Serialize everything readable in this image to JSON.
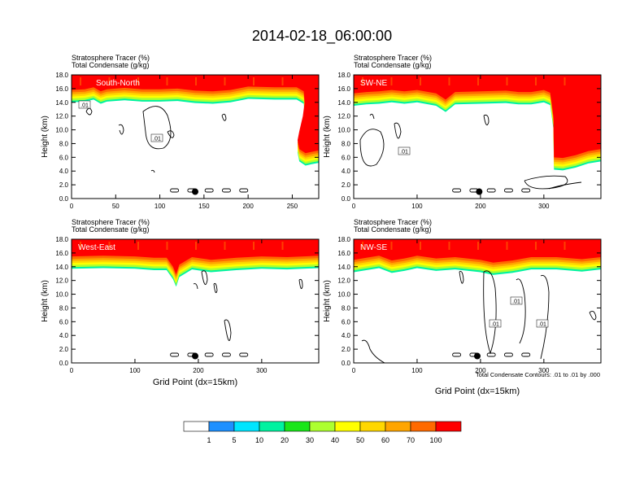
{
  "title": "2014-02-18_06:00:00",
  "colors": {
    "levels": [
      "#ffffff",
      "#1e90ff",
      "#00e5ff",
      "#00f2a0",
      "#19e619",
      "#adff2f",
      "#ffff00",
      "#ffd700",
      "#ffa500",
      "#ff6a00",
      "#ff0000"
    ],
    "contour": "#000000",
    "frame": "#000000"
  },
  "colorbar": {
    "labels": [
      "1",
      "5",
      "10",
      "20",
      "30",
      "40",
      "50",
      "60",
      "70",
      "100"
    ]
  },
  "contour_note": "Total Condensate Contours: .01 to .01 by .000",
  "chart_data": [
    {
      "type": "heatmap",
      "panel": "South-North",
      "header": [
        "Stratosphere Tracer   (%)",
        "Total Condensate   (g/kg)"
      ],
      "ylabel": "Height (km)",
      "xlabel": "",
      "xlim": [
        0,
        280
      ],
      "ylim": [
        0,
        18
      ],
      "xticks": [
        "0",
        "50",
        "100",
        "150",
        "200",
        "250"
      ],
      "yticks": [
        "0.0",
        "2.0",
        "4.0",
        "6.0",
        "8.0",
        "10.0",
        "12.0",
        "14.0",
        "16.0",
        "18.0"
      ],
      "contour_labels": [
        ".01",
        ".01"
      ],
      "marker_x": 140,
      "tropopause": [
        [
          0,
          15.8
        ],
        [
          15,
          15.9
        ],
        [
          25,
          16.2
        ],
        [
          33,
          15.6
        ],
        [
          40,
          15.9
        ],
        [
          60,
          16.1
        ],
        [
          80,
          15.9
        ],
        [
          100,
          15.9
        ],
        [
          120,
          16.0
        ],
        [
          140,
          15.7
        ],
        [
          160,
          15.6
        ],
        [
          180,
          15.8
        ],
        [
          200,
          16.3
        ],
        [
          230,
          16.2
        ],
        [
          255,
          16.2
        ],
        [
          263,
          15.6
        ],
        [
          264,
          14.0
        ],
        [
          262,
          12.0
        ],
        [
          258,
          9.8
        ],
        [
          256,
          8.5
        ],
        [
          258,
          7.2
        ],
        [
          265,
          6.6
        ],
        [
          272,
          6.8
        ],
        [
          280,
          7.0
        ]
      ]
    },
    {
      "type": "heatmap",
      "panel": "SW-NE",
      "header": [
        "Stratosphere Tracer   (%)",
        "Total Condensate   (g/kg)"
      ],
      "ylabel": "Height (km)",
      "xlabel": "",
      "xlim": [
        0,
        390
      ],
      "ylim": [
        0,
        18
      ],
      "xticks": [
        "0",
        "100",
        "200",
        "300"
      ],
      "yticks": [
        "0.0",
        "2.0",
        "4.0",
        "6.0",
        "8.0",
        "10.0",
        "12.0",
        "14.0",
        "16.0",
        "18.0"
      ],
      "contour_labels": [
        ".01"
      ],
      "marker_x": 198,
      "tropopause": [
        [
          0,
          15.3
        ],
        [
          20,
          15.5
        ],
        [
          40,
          15.6
        ],
        [
          60,
          15.8
        ],
        [
          80,
          15.6
        ],
        [
          100,
          15.8
        ],
        [
          130,
          15.3
        ],
        [
          145,
          14.4
        ],
        [
          160,
          15.5
        ],
        [
          200,
          15.6
        ],
        [
          240,
          15.7
        ],
        [
          260,
          15.5
        ],
        [
          280,
          15.5
        ],
        [
          300,
          15.8
        ],
        [
          310,
          15.4
        ],
        [
          315,
          12.0
        ],
        [
          316,
          6.0
        ],
        [
          330,
          5.9
        ],
        [
          350,
          6.3
        ],
        [
          370,
          6.9
        ],
        [
          390,
          7.2
        ]
      ]
    },
    {
      "type": "heatmap",
      "panel": "West-East",
      "header": [
        "Stratosphere Tracer   (%)",
        "Total Condensate   (g/kg)"
      ],
      "ylabel": "Height (km)",
      "xlabel": "Grid Point (dx=15km)",
      "xlim": [
        0,
        390
      ],
      "ylim": [
        0,
        18
      ],
      "xticks": [
        "0",
        "100",
        "200",
        "300"
      ],
      "yticks": [
        "0.0",
        "2.0",
        "4.0",
        "6.0",
        "8.0",
        "10.0",
        "12.0",
        "14.0",
        "16.0",
        "18.0"
      ],
      "contour_labels": [],
      "marker_x": 195,
      "tropopause": [
        [
          0,
          15.5
        ],
        [
          50,
          15.6
        ],
        [
          100,
          15.5
        ],
        [
          130,
          15.3
        ],
        [
          150,
          15.3
        ],
        [
          160,
          14.0
        ],
        [
          165,
          12.9
        ],
        [
          170,
          14.3
        ],
        [
          190,
          15.4
        ],
        [
          220,
          15.0
        ],
        [
          260,
          15.3
        ],
        [
          300,
          15.5
        ],
        [
          340,
          15.4
        ],
        [
          390,
          15.6
        ]
      ]
    },
    {
      "type": "heatmap",
      "panel": "NW-SE",
      "header": [
        "Stratosphere Tracer   (%)",
        "Total Condensate   (g/kg)"
      ],
      "ylabel": "Height (km)",
      "xlabel": "Grid Point (dx=15km)",
      "xlim": [
        0,
        390
      ],
      "ylim": [
        0,
        18
      ],
      "xticks": [
        "0",
        "100",
        "200",
        "300"
      ],
      "yticks": [
        "0.0",
        "2.0",
        "4.0",
        "6.0",
        "8.0",
        "10.0",
        "12.0",
        "14.0",
        "16.0",
        "18.0"
      ],
      "contour_labels": [
        ".01",
        ".01",
        ".01"
      ],
      "marker_x": 195,
      "tropopause": [
        [
          0,
          15.0
        ],
        [
          20,
          15.3
        ],
        [
          40,
          15.6
        ],
        [
          60,
          14.9
        ],
        [
          80,
          15.2
        ],
        [
          100,
          15.6
        ],
        [
          130,
          15.2
        ],
        [
          160,
          15.4
        ],
        [
          200,
          15.0
        ],
        [
          220,
          14.6
        ],
        [
          250,
          14.9
        ],
        [
          280,
          15.4
        ],
        [
          320,
          15.4
        ],
        [
          360,
          15.1
        ],
        [
          390,
          15.4
        ]
      ]
    }
  ]
}
